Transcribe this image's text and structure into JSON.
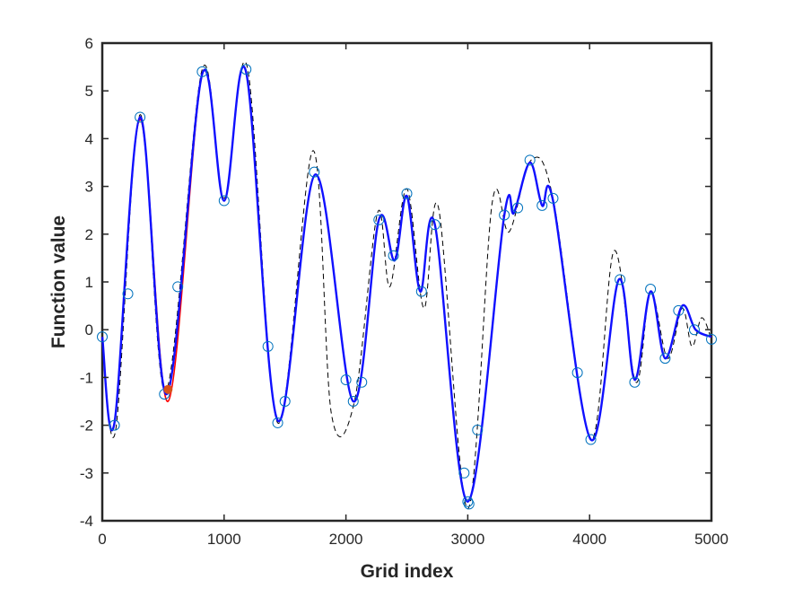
{
  "chart_data": {
    "type": "line",
    "title": "",
    "xlabel": "Grid index",
    "ylabel": "Function value",
    "xlim": [
      0,
      5000
    ],
    "ylim": [
      -4,
      6
    ],
    "x_ticks": [
      0,
      1000,
      2000,
      3000,
      4000,
      5000
    ],
    "y_ticks": [
      -4,
      -3,
      -2,
      -1,
      0,
      1,
      2,
      3,
      4,
      5,
      6
    ],
    "x_tick_labels": [
      "0",
      "1000",
      "2000",
      "3000",
      "4000",
      "5000"
    ],
    "y_tick_labels": [
      "-4",
      "-3",
      "-2",
      "-1",
      "0",
      "1",
      "2",
      "3",
      "4",
      "5",
      "6"
    ],
    "grid": false,
    "legend": "none",
    "series": [
      {
        "style": "dashed",
        "color": "#000000",
        "points": [
          [
            0,
            -0.2
          ],
          [
            110,
            -2.1
          ],
          [
            310,
            4.5
          ],
          [
            520,
            -1.3
          ],
          [
            820,
            5.45
          ],
          [
            1000,
            2.75
          ],
          [
            1190,
            5.5
          ],
          [
            1440,
            -1.95
          ],
          [
            1730,
            3.75
          ],
          [
            1880,
            -1.75
          ],
          [
            2070,
            -1.5
          ],
          [
            2260,
            2.45
          ],
          [
            2360,
            0.9
          ],
          [
            2500,
            2.95
          ],
          [
            2640,
            0.45
          ],
          [
            2760,
            2.55
          ],
          [
            3000,
            -3.75
          ],
          [
            3200,
            2.65
          ],
          [
            3340,
            2.05
          ],
          [
            3520,
            3.55
          ],
          [
            3700,
            2.75
          ],
          [
            4010,
            -2.3
          ],
          [
            4200,
            1.65
          ],
          [
            4380,
            -1.1
          ],
          [
            4500,
            0.8
          ],
          [
            4640,
            -0.6
          ],
          [
            4760,
            0.45
          ],
          [
            4840,
            -0.35
          ],
          [
            4920,
            0.25
          ],
          [
            5000,
            -0.2
          ]
        ]
      },
      {
        "style": "solid",
        "color": "#ff0000",
        "points": [
          [
            0,
            -0.15
          ],
          [
            100,
            -1.95
          ],
          [
            310,
            4.4
          ],
          [
            540,
            -1.5
          ],
          [
            820,
            5.35
          ],
          [
            1000,
            2.7
          ],
          [
            1180,
            5.4
          ],
          [
            1440,
            -1.9
          ],
          [
            1750,
            3.25
          ],
          [
            2060,
            -1.5
          ],
          [
            2270,
            2.3
          ],
          [
            2400,
            1.45
          ],
          [
            2500,
            2.8
          ],
          [
            2610,
            0.8
          ],
          [
            2730,
            2.2
          ],
          [
            3000,
            -3.6
          ],
          [
            3300,
            2.4
          ],
          [
            3380,
            2.45
          ],
          [
            3510,
            3.5
          ],
          [
            3610,
            2.6
          ],
          [
            3700,
            2.7
          ],
          [
            4010,
            -2.3
          ],
          [
            4240,
            1.05
          ],
          [
            4370,
            -1.05
          ],
          [
            4500,
            0.8
          ],
          [
            4620,
            -0.6
          ],
          [
            4760,
            0.5
          ],
          [
            4870,
            0.0
          ],
          [
            5000,
            -0.15
          ]
        ]
      },
      {
        "style": "solid",
        "color": "#1010ff",
        "points": [
          [
            0,
            -0.15
          ],
          [
            100,
            -1.95
          ],
          [
            310,
            4.45
          ],
          [
            530,
            -1.35
          ],
          [
            820,
            5.35
          ],
          [
            1000,
            2.7
          ],
          [
            1180,
            5.4
          ],
          [
            1440,
            -1.9
          ],
          [
            1750,
            3.25
          ],
          [
            2060,
            -1.5
          ],
          [
            2270,
            2.3
          ],
          [
            2400,
            1.45
          ],
          [
            2500,
            2.8
          ],
          [
            2610,
            0.8
          ],
          [
            2730,
            2.2
          ],
          [
            3000,
            -3.6
          ],
          [
            3300,
            2.4
          ],
          [
            3380,
            2.45
          ],
          [
            3510,
            3.5
          ],
          [
            3610,
            2.6
          ],
          [
            3700,
            2.7
          ],
          [
            4010,
            -2.3
          ],
          [
            4240,
            1.05
          ],
          [
            4370,
            -1.05
          ],
          [
            4500,
            0.8
          ],
          [
            4620,
            -0.6
          ],
          [
            4760,
            0.5
          ],
          [
            4870,
            0.0
          ],
          [
            5000,
            -0.15
          ]
        ]
      }
    ],
    "markers": {
      "shape": "circle",
      "color": "#0072bd",
      "points": [
        [
          0,
          -0.15
        ],
        [
          100,
          -2.0
        ],
        [
          210,
          0.75
        ],
        [
          310,
          4.45
        ],
        [
          510,
          -1.35
        ],
        [
          620,
          0.9
        ],
        [
          820,
          5.4
        ],
        [
          1000,
          2.7
        ],
        [
          1180,
          5.45
        ],
        [
          1360,
          -0.35
        ],
        [
          1440,
          -1.95
        ],
        [
          1500,
          -1.5
        ],
        [
          1740,
          3.3
        ],
        [
          2000,
          -1.05
        ],
        [
          2060,
          -1.5
        ],
        [
          2130,
          -1.1
        ],
        [
          2270,
          2.3
        ],
        [
          2390,
          1.55
        ],
        [
          2500,
          2.85
        ],
        [
          2620,
          0.8
        ],
        [
          2730,
          2.2
        ],
        [
          2970,
          -3.0
        ],
        [
          3000,
          -3.6
        ],
        [
          3010,
          -3.65
        ],
        [
          3080,
          -2.1
        ],
        [
          3300,
          2.4
        ],
        [
          3410,
          2.55
        ],
        [
          3510,
          3.55
        ],
        [
          3610,
          2.6
        ],
        [
          3700,
          2.75
        ],
        [
          3900,
          -0.9
        ],
        [
          4010,
          -2.3
        ],
        [
          4250,
          1.05
        ],
        [
          4370,
          -1.1
        ],
        [
          4500,
          0.85
        ],
        [
          4620,
          -0.6
        ],
        [
          4730,
          0.4
        ],
        [
          4860,
          0.0
        ],
        [
          5000,
          -0.2
        ]
      ]
    },
    "highlight_point": {
      "color": "#d95319",
      "point": [
        540,
        -1.25
      ]
    }
  }
}
